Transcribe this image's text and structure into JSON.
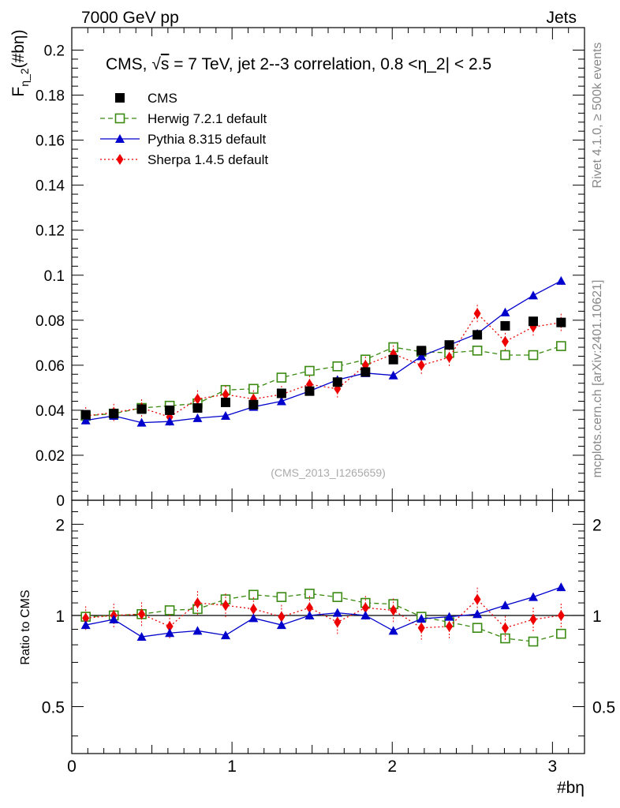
{
  "header": {
    "left": "7000 GeV pp",
    "right": "Jets",
    "side_top": "Rivet 4.1.0, ≥ 500k events",
    "side_bottom": "mcplots.cern.ch [arXiv:2401.10621]",
    "watermark": "(CMS_2013_I1265659)"
  },
  "chart_data": {
    "type": "line",
    "title": "CMS, √s = 7 TeV, jet 2--3 correlation, 0.8 <η_2| < 2.5",
    "title_parts": {
      "prefix": "CMS, ",
      "sqrt": "√",
      "s": "s",
      "rest": " = 7 TeV, jet 2--3 correlation, 0.8 <η_2| < 2.5"
    },
    "xlabel": "#bη",
    "ylabel": {
      "main": "F",
      "sub": "η_2",
      "tail": "(#bη)"
    },
    "ratio_ylabel": "Ratio to CMS",
    "xlim": [
      0,
      3.2
    ],
    "ylim": [
      0,
      0.21
    ],
    "ratio_ylim": [
      0.35,
      2.4
    ],
    "x_ticks": [
      "0",
      "1",
      "2",
      "3"
    ],
    "y_ticks": [
      "0",
      "0.02",
      "0.04",
      "0.06",
      "0.08",
      "0.1",
      "0.12",
      "0.14",
      "0.16",
      "0.18",
      "0.2"
    ],
    "ratio_ticks": [
      "0.5",
      "1",
      "2"
    ],
    "x": [
      0.087,
      0.262,
      0.436,
      0.611,
      0.785,
      0.96,
      1.134,
      1.309,
      1.484,
      1.658,
      1.833,
      2.007,
      2.182,
      2.356,
      2.531,
      2.705,
      2.88,
      3.054
    ],
    "series": [
      {
        "name": "CMS",
        "color": "#000000",
        "marker": "square",
        "line": "none",
        "values": [
          0.038,
          0.0385,
          0.0405,
          0.04,
          0.041,
          0.0435,
          0.0425,
          0.0475,
          0.0485,
          0.0525,
          0.057,
          0.0625,
          0.0665,
          0.069,
          0.0735,
          0.0775,
          0.0795,
          0.079
        ],
        "ratio": [
          1,
          1,
          1,
          1,
          1,
          1,
          1,
          1,
          1,
          1,
          1,
          1,
          1,
          1,
          1,
          1,
          1,
          1
        ]
      },
      {
        "name": "Herwig 7.2.1 default",
        "color": "#3a8a11",
        "marker": "open-square",
        "line": "dashed",
        "values": [
          0.0375,
          0.0385,
          0.041,
          0.042,
          0.043,
          0.049,
          0.0495,
          0.0545,
          0.0575,
          0.0595,
          0.0625,
          0.068,
          0.066,
          0.0655,
          0.0665,
          0.0645,
          0.0645,
          0.0685
        ],
        "ratio": [
          0.99,
          1.0,
          1.01,
          1.04,
          1.05,
          1.13,
          1.17,
          1.15,
          1.18,
          1.15,
          1.1,
          1.09,
          0.99,
          0.95,
          0.91,
          0.84,
          0.82,
          0.87
        ]
      },
      {
        "name": "Pythia 8.315 default",
        "color": "#0000cc",
        "marker": "triangle",
        "line": "solid",
        "values": [
          0.0355,
          0.0375,
          0.0345,
          0.035,
          0.0365,
          0.0375,
          0.0415,
          0.044,
          0.0485,
          0.0535,
          0.0565,
          0.0555,
          0.064,
          0.069,
          0.074,
          0.0835,
          0.091,
          0.0975
        ],
        "ratio": [
          0.93,
          0.97,
          0.85,
          0.875,
          0.89,
          0.86,
          0.98,
          0.93,
          1.0,
          1.02,
          1.0,
          0.89,
          0.975,
          0.99,
          1.01,
          1.08,
          1.15,
          1.24
        ]
      },
      {
        "name": "Sherpa 1.4.5 default",
        "color": "#ee0000",
        "marker": "diamond",
        "line": "dotted",
        "values": [
          0.0375,
          0.039,
          0.041,
          0.037,
          0.045,
          0.047,
          0.045,
          0.047,
          0.0515,
          0.0495,
          0.06,
          0.065,
          0.06,
          0.0635,
          0.083,
          0.0705,
          0.077,
          0.079
        ],
        "ratio": [
          0.98,
          1.0,
          1.01,
          0.92,
          1.1,
          1.08,
          1.05,
          0.99,
          1.06,
          0.95,
          1.06,
          1.04,
          0.91,
          0.92,
          1.13,
          0.91,
          0.97,
          1.0
        ]
      }
    ]
  }
}
